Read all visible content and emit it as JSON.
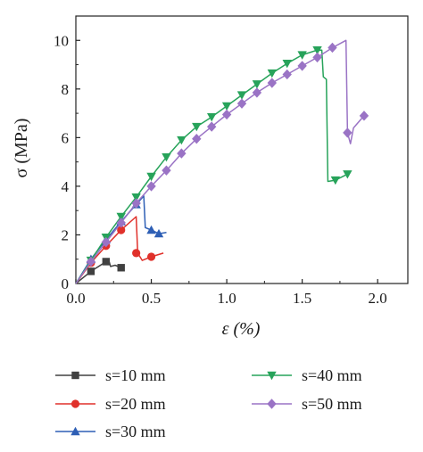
{
  "chart_data": {
    "type": "line",
    "xlabel": "ε (%)",
    "ylabel": "σ (MPa)",
    "xlim": [
      0,
      2.2
    ],
    "ylim": [
      0,
      11
    ],
    "xticks": [
      0.0,
      0.5,
      1.0,
      1.5,
      2.0
    ],
    "xtick_labels": [
      "0.0",
      "0.5",
      "1.0",
      "1.5",
      "2.0"
    ],
    "yticks": [
      0,
      2,
      4,
      6,
      8,
      10
    ],
    "ytick_labels": [
      "0",
      "2",
      "4",
      "6",
      "8",
      "10"
    ],
    "grid": false,
    "legend_position": "bottom",
    "series": [
      {
        "name": "s=10 mm",
        "color": "#404040",
        "marker": "square",
        "line": [
          [
            0,
            0
          ],
          [
            0.1,
            0.5
          ],
          [
            0.2,
            0.9
          ],
          [
            0.22,
            0.92
          ],
          [
            0.23,
            0.7
          ],
          [
            0.26,
            0.75
          ],
          [
            0.3,
            0.65
          ]
        ],
        "markers": [
          [
            0.1,
            0.5
          ],
          [
            0.2,
            0.9
          ],
          [
            0.3,
            0.65
          ]
        ]
      },
      {
        "name": "s=20 mm",
        "color": "#e0312b",
        "marker": "circle",
        "line": [
          [
            0,
            0
          ],
          [
            0.1,
            0.85
          ],
          [
            0.2,
            1.55
          ],
          [
            0.3,
            2.2
          ],
          [
            0.4,
            2.75
          ],
          [
            0.41,
            1.25
          ],
          [
            0.44,
            0.95
          ],
          [
            0.5,
            1.1
          ],
          [
            0.58,
            1.25
          ]
        ],
        "markers": [
          [
            0.1,
            0.85
          ],
          [
            0.2,
            1.55
          ],
          [
            0.3,
            2.2
          ],
          [
            0.4,
            1.25
          ],
          [
            0.5,
            1.1
          ]
        ]
      },
      {
        "name": "s=30 mm",
        "color": "#2e5fb5",
        "marker": "triangle-up",
        "line": [
          [
            0,
            0
          ],
          [
            0.1,
            1.0
          ],
          [
            0.2,
            1.8
          ],
          [
            0.3,
            2.55
          ],
          [
            0.4,
            3.25
          ],
          [
            0.45,
            3.6
          ],
          [
            0.46,
            2.3
          ],
          [
            0.5,
            2.2
          ],
          [
            0.55,
            2.05
          ],
          [
            0.6,
            2.1
          ]
        ],
        "markers": [
          [
            0.1,
            1.0
          ],
          [
            0.2,
            1.8
          ],
          [
            0.3,
            2.55
          ],
          [
            0.4,
            3.25
          ],
          [
            0.5,
            2.2
          ],
          [
            0.55,
            2.05
          ]
        ]
      },
      {
        "name": "s=40 mm",
        "color": "#27a35a",
        "marker": "triangle-down",
        "line": [
          [
            0,
            0
          ],
          [
            0.1,
            0.95
          ],
          [
            0.2,
            1.9
          ],
          [
            0.3,
            2.75
          ],
          [
            0.4,
            3.55
          ],
          [
            0.5,
            4.4
          ],
          [
            0.6,
            5.2
          ],
          [
            0.7,
            5.9
          ],
          [
            0.8,
            6.45
          ],
          [
            0.9,
            6.85
          ],
          [
            1.0,
            7.3
          ],
          [
            1.1,
            7.75
          ],
          [
            1.2,
            8.2
          ],
          [
            1.3,
            8.65
          ],
          [
            1.4,
            9.05
          ],
          [
            1.5,
            9.4
          ],
          [
            1.6,
            9.6
          ],
          [
            1.63,
            9.6
          ],
          [
            1.64,
            8.5
          ],
          [
            1.66,
            8.4
          ],
          [
            1.67,
            4.2
          ],
          [
            1.72,
            4.25
          ],
          [
            1.8,
            4.5
          ]
        ],
        "markers": [
          [
            0.1,
            0.95
          ],
          [
            0.2,
            1.9
          ],
          [
            0.3,
            2.75
          ],
          [
            0.4,
            3.55
          ],
          [
            0.5,
            4.4
          ],
          [
            0.6,
            5.2
          ],
          [
            0.7,
            5.9
          ],
          [
            0.8,
            6.45
          ],
          [
            0.9,
            6.85
          ],
          [
            1.0,
            7.3
          ],
          [
            1.1,
            7.75
          ],
          [
            1.2,
            8.2
          ],
          [
            1.3,
            8.65
          ],
          [
            1.4,
            9.05
          ],
          [
            1.5,
            9.4
          ],
          [
            1.6,
            9.6
          ],
          [
            1.72,
            4.25
          ],
          [
            1.8,
            4.5
          ]
        ]
      },
      {
        "name": "s=50 mm",
        "color": "#9a73c5",
        "marker": "diamond",
        "line": [
          [
            0,
            0
          ],
          [
            0.1,
            0.9
          ],
          [
            0.2,
            1.7
          ],
          [
            0.3,
            2.5
          ],
          [
            0.4,
            3.3
          ],
          [
            0.5,
            4.0
          ],
          [
            0.6,
            4.65
          ],
          [
            0.7,
            5.35
          ],
          [
            0.8,
            5.95
          ],
          [
            0.9,
            6.45
          ],
          [
            1.0,
            6.95
          ],
          [
            1.1,
            7.4
          ],
          [
            1.2,
            7.85
          ],
          [
            1.3,
            8.25
          ],
          [
            1.4,
            8.6
          ],
          [
            1.5,
            8.95
          ],
          [
            1.6,
            9.3
          ],
          [
            1.7,
            9.7
          ],
          [
            1.79,
            10.0
          ],
          [
            1.8,
            6.2
          ],
          [
            1.82,
            5.75
          ],
          [
            1.84,
            6.4
          ],
          [
            1.91,
            6.9
          ]
        ],
        "markers": [
          [
            0.1,
            0.9
          ],
          [
            0.2,
            1.7
          ],
          [
            0.3,
            2.5
          ],
          [
            0.4,
            3.3
          ],
          [
            0.5,
            4.0
          ],
          [
            0.6,
            4.65
          ],
          [
            0.7,
            5.35
          ],
          [
            0.8,
            5.95
          ],
          [
            0.9,
            6.45
          ],
          [
            1.0,
            6.95
          ],
          [
            1.1,
            7.4
          ],
          [
            1.2,
            7.85
          ],
          [
            1.3,
            8.25
          ],
          [
            1.4,
            8.6
          ],
          [
            1.5,
            8.95
          ],
          [
            1.6,
            9.3
          ],
          [
            1.7,
            9.7
          ],
          [
            1.8,
            6.2
          ],
          [
            1.91,
            6.9
          ]
        ]
      }
    ]
  }
}
